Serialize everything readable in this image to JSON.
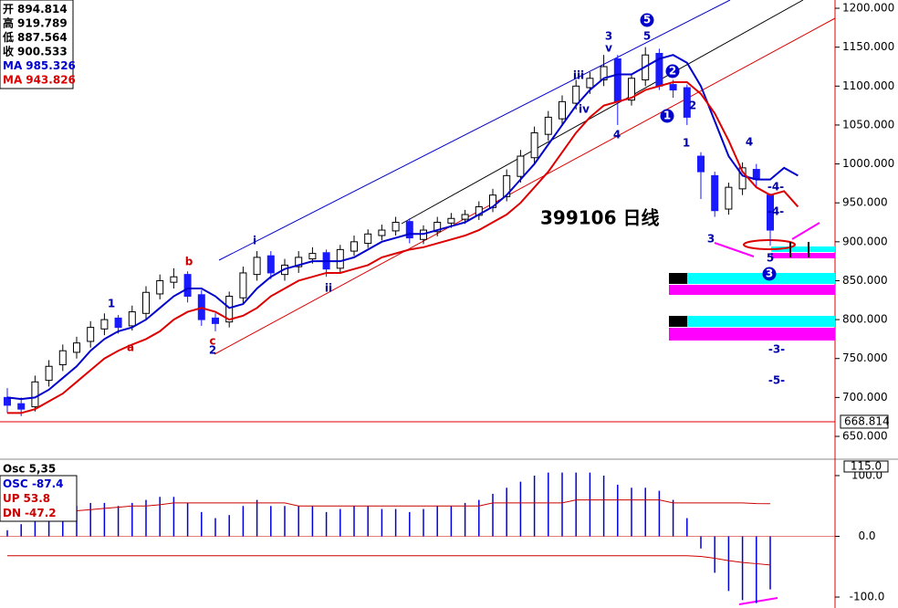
{
  "chart_data": [
    {
      "type": "candlestick",
      "title": "399106 日线",
      "categories": [
        null,
        null,
        null,
        null,
        null,
        null,
        null,
        null,
        null,
        null,
        null,
        null,
        null,
        null,
        null,
        null,
        null,
        null,
        null,
        null,
        null,
        null,
        null,
        null,
        null,
        null,
        null,
        null,
        null,
        null,
        null,
        null,
        null,
        null,
        null,
        null,
        null,
        null,
        null,
        null,
        null,
        null,
        null,
        null,
        null,
        null,
        null,
        null,
        null,
        null,
        null,
        null,
        null,
        null,
        null,
        null,
        null,
        null
      ],
      "open": [
        700,
        692,
        688,
        722,
        742,
        758,
        772,
        788,
        802,
        792,
        808,
        833,
        848,
        858,
        832,
        802,
        797,
        828,
        858,
        882,
        858,
        868,
        878,
        886,
        866,
        888,
        898,
        908,
        914,
        926,
        903,
        913,
        924,
        929,
        934,
        944,
        958,
        984,
        1008,
        1038,
        1058,
        1078,
        1098,
        1108,
        1135,
        1082,
        1108,
        1142,
        1102,
        1098,
        1010,
        985,
        942,
        968,
        993,
        960,
        null,
        null
      ],
      "high": [
        712,
        700,
        728,
        748,
        768,
        778,
        798,
        808,
        806,
        818,
        843,
        858,
        866,
        862,
        838,
        808,
        836,
        868,
        888,
        888,
        878,
        888,
        893,
        890,
        896,
        908,
        916,
        922,
        932,
        930,
        921,
        932,
        937,
        941,
        952,
        968,
        993,
        1018,
        1048,
        1068,
        1088,
        1108,
        1118,
        1140,
        1140,
        1116,
        1150,
        1148,
        1108,
        1102,
        1015,
        990,
        976,
        1002,
        1000,
        962,
        null,
        null
      ],
      "low": [
        680,
        676,
        682,
        714,
        734,
        750,
        764,
        780,
        782,
        786,
        800,
        826,
        840,
        822,
        792,
        785,
        790,
        820,
        850,
        852,
        850,
        860,
        872,
        855,
        860,
        882,
        892,
        902,
        908,
        898,
        897,
        907,
        918,
        923,
        928,
        938,
        952,
        976,
        1000,
        1030,
        1050,
        1070,
        1090,
        1100,
        1050,
        1075,
        1100,
        1095,
        1085,
        1050,
        955,
        932,
        935,
        960,
        970,
        895,
        null,
        null
      ],
      "close": [
        690,
        685,
        720,
        740,
        760,
        770,
        790,
        800,
        790,
        810,
        835,
        850,
        855,
        830,
        800,
        795,
        830,
        860,
        880,
        860,
        870,
        880,
        885,
        865,
        890,
        900,
        910,
        915,
        925,
        905,
        915,
        925,
        930,
        935,
        945,
        960,
        985,
        1010,
        1040,
        1060,
        1080,
        1100,
        1110,
        1125,
        1080,
        1110,
        1140,
        1100,
        1095,
        1060,
        990,
        940,
        970,
        995,
        980,
        915,
        null,
        null
      ],
      "up_color": "#ffffff",
      "down_color": "#1a1aff",
      "series": [
        {
          "name": "MA",
          "color": "#0000cc",
          "values": [
            700,
            698,
            700,
            710,
            725,
            740,
            760,
            775,
            785,
            790,
            800,
            815,
            830,
            840,
            840,
            830,
            815,
            820,
            840,
            855,
            865,
            870,
            875,
            875,
            875,
            880,
            890,
            900,
            905,
            910,
            910,
            915,
            920,
            925,
            935,
            945,
            960,
            980,
            1000,
            1025,
            1050,
            1075,
            1095,
            1110,
            1115,
            1115,
            1125,
            1135,
            1140,
            1130,
            1100,
            1055,
            1010,
            985,
            980,
            980,
            995,
            985
          ]
        },
        {
          "name": "MA",
          "color": "#dd0000",
          "values": [
            680,
            680,
            685,
            695,
            705,
            720,
            735,
            750,
            760,
            768,
            775,
            785,
            800,
            810,
            815,
            810,
            800,
            805,
            815,
            830,
            840,
            850,
            855,
            860,
            860,
            865,
            870,
            880,
            885,
            890,
            893,
            898,
            903,
            908,
            915,
            925,
            935,
            950,
            970,
            990,
            1015,
            1040,
            1060,
            1075,
            1080,
            1085,
            1095,
            1100,
            1105,
            1105,
            1090,
            1065,
            1030,
            990,
            970,
            960,
            965,
            945
          ]
        }
      ],
      "legend": [
        {
          "label": "开",
          "value": 894.814,
          "color": "#000000"
        },
        {
          "label": "高",
          "value": 919.789,
          "color": "#000000"
        },
        {
          "label": "低",
          "value": 887.564,
          "color": "#000000"
        },
        {
          "label": "收",
          "value": 900.533,
          "color": "#000000"
        },
        {
          "label": "MA",
          "value": 985.326,
          "color": "#0000cc"
        },
        {
          "label": "MA",
          "value": 943.826,
          "color": "#dd0000"
        }
      ],
      "annotations": [
        {
          "text": "1",
          "color": "#0000aa"
        },
        {
          "text": "a",
          "color": "#cc0000"
        },
        {
          "text": "b",
          "color": "#cc0000"
        },
        {
          "text": "c",
          "color": "#cc0000"
        },
        {
          "text": "2",
          "color": "#0000aa"
        },
        {
          "text": "i",
          "color": "#0000aa"
        },
        {
          "text": "ii",
          "color": "#0000aa"
        },
        {
          "text": "iii",
          "color": "#0000aa"
        },
        {
          "text": "iv",
          "color": "#0000aa"
        },
        {
          "text": "3",
          "color": "#0000aa"
        },
        {
          "text": "v",
          "color": "#0000aa"
        },
        {
          "text": "4",
          "color": "#0000aa"
        },
        {
          "text": "5",
          "color": "#0000aa"
        },
        {
          "text": "5",
          "color": "#0000aa"
        },
        {
          "text": "2",
          "color": "#0000aa"
        },
        {
          "text": "1",
          "color": "#0000aa"
        },
        {
          "text": "2",
          "color": "#0000aa"
        },
        {
          "text": "1",
          "color": "#0000aa"
        },
        {
          "text": "3",
          "color": "#0000aa"
        },
        {
          "text": "4",
          "color": "#0000aa"
        },
        {
          "text": "5",
          "color": "#0000aa"
        },
        {
          "text": "3",
          "color": "#0000aa"
        },
        {
          "text": "-4-",
          "color": "#0000aa"
        },
        {
          "text": "-4-",
          "color": "#0000aa"
        },
        {
          "text": "-3-",
          "color": "#0000aa"
        },
        {
          "text": "-5-",
          "color": "#0000aa"
        }
      ],
      "cursor_price": 668.814,
      "ylim": [
        624.2,
        1210.6
      ],
      "yticks": [
        {
          "value": 1200,
          "label": "1200.000"
        },
        {
          "value": 1150,
          "label": "1150.000"
        },
        {
          "value": 1100,
          "label": "1100.000"
        },
        {
          "value": 1050,
          "label": "1050.000"
        },
        {
          "value": 1000,
          "label": "1000.000"
        },
        {
          "value": 950,
          "label": "950.000"
        },
        {
          "value": 900,
          "label": "900.000"
        },
        {
          "value": 850,
          "label": "850.000"
        },
        {
          "value": 800,
          "label": "800.000"
        },
        {
          "value": 750,
          "label": "750.000"
        },
        {
          "value": 700,
          "label": "700.000"
        },
        {
          "value": 650,
          "label": "650.000"
        }
      ]
    },
    {
      "type": "oscillator",
      "title": "Osc 5,35",
      "series": [
        {
          "name": "OSC",
          "color": "#0000dd",
          "values": [
            10,
            20,
            30,
            40,
            45,
            50,
            55,
            55,
            50,
            55,
            60,
            65,
            65,
            55,
            40,
            30,
            35,
            50,
            60,
            50,
            50,
            50,
            50,
            40,
            45,
            50,
            50,
            45,
            45,
            40,
            45,
            50,
            50,
            55,
            60,
            70,
            80,
            90,
            100,
            105,
            105,
            105,
            105,
            100,
            85,
            80,
            80,
            75,
            60,
            30,
            -20,
            -60,
            -90,
            -105,
            -110,
            -87.4,
            null,
            null
          ]
        },
        {
          "name": "UP",
          "color": "#cc0000",
          "values": [
            35,
            36,
            38,
            40,
            40,
            42,
            44,
            46,
            48,
            50,
            50,
            52,
            55,
            55,
            55,
            55,
            55,
            55,
            55,
            55,
            55,
            50,
            50,
            50,
            50,
            50,
            50,
            50,
            50,
            50,
            50,
            50,
            50,
            50,
            50,
            55,
            55,
            55,
            55,
            55,
            55,
            60,
            60,
            60,
            60,
            60,
            60,
            60,
            55,
            55,
            55,
            55,
            55,
            55,
            54,
            53.8,
            null,
            null
          ]
        },
        {
          "name": "DN",
          "color": "#cc0000",
          "values": [
            -32,
            -32,
            -32,
            -32,
            -32,
            -32,
            -32,
            -32,
            -32,
            -32,
            -32,
            -32,
            -32,
            -32,
            -32,
            -32,
            -32,
            -32,
            -32,
            -32,
            -32,
            -32,
            -32,
            -32,
            -32,
            -32,
            -32,
            -32,
            -32,
            -32,
            -32,
            -32,
            -32,
            -32,
            -32,
            -32,
            -32,
            -32,
            -32,
            -32,
            -32,
            -32,
            -32,
            -32,
            -32,
            -32,
            -32,
            -32,
            -32,
            -32,
            -33,
            -36,
            -40,
            -43,
            -45,
            -47.2,
            null,
            null
          ]
        }
      ],
      "legend": [
        {
          "label": "OSC",
          "value": -87.4,
          "color": "#0000cc"
        },
        {
          "label": "UP",
          "value": 53.8,
          "color": "#cc0000"
        },
        {
          "label": "DN",
          "value": -47.2,
          "color": "#cc0000"
        }
      ],
      "current_value": {
        "value": 115,
        "label": "115.0"
      },
      "ylim": [
        -118,
        119.5
      ],
      "yticks": [
        {
          "value": 100,
          "label": "100.0"
        },
        {
          "value": 0,
          "label": "0.0"
        },
        {
          "value": -100,
          "label": "-100.0"
        }
      ]
    }
  ]
}
